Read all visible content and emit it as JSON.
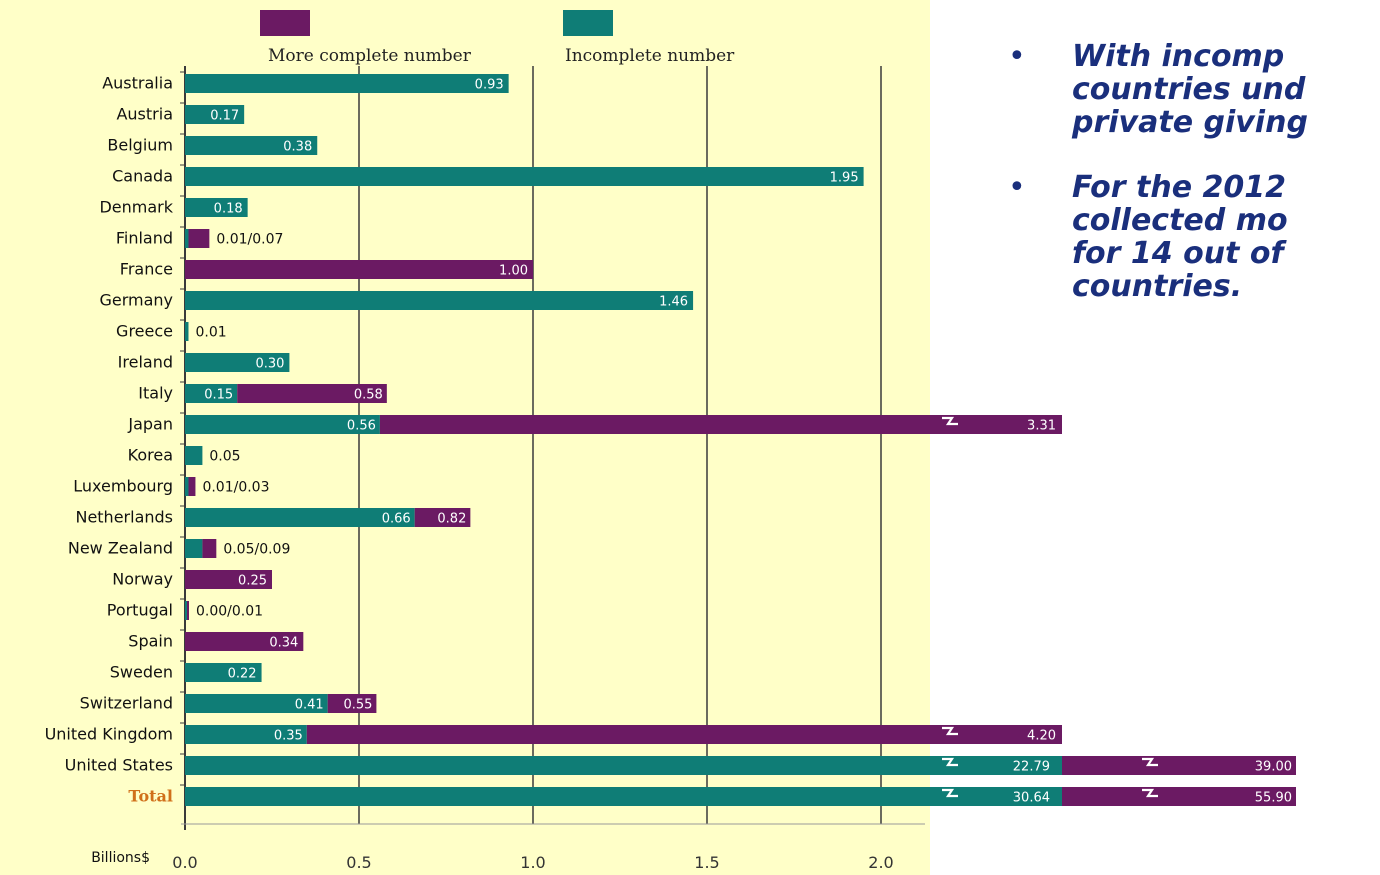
{
  "chart_data": {
    "type": "bar",
    "xlabel": "Billions$",
    "x_ticks": [
      "0.0",
      "0.5",
      "1.0",
      "1.5",
      "2.0"
    ],
    "xlim": [
      0,
      2.1
    ],
    "grid": true,
    "legend": [
      {
        "name": "More complete number",
        "color": "#6b1a63"
      },
      {
        "name": "Incomplete number",
        "color": "#0f7d76"
      }
    ],
    "categories": [
      "Australia",
      "Austria",
      "Belgium",
      "Canada",
      "Denmark",
      "Finland",
      "France",
      "Germany",
      "Greece",
      "Ireland",
      "Italy",
      "Japan",
      "Korea",
      "Luxembourg",
      "Netherlands",
      "New Zealand",
      "Norway",
      "Portugal",
      "Spain",
      "Sweden",
      "Switzerland",
      "United Kingdom",
      "United States",
      "Total"
    ],
    "rows": [
      {
        "incomplete": 0.93,
        "complete": null,
        "label": "0.93"
      },
      {
        "incomplete": 0.17,
        "complete": null,
        "label": "0.17"
      },
      {
        "incomplete": 0.38,
        "complete": null,
        "label": "0.38"
      },
      {
        "incomplete": 1.95,
        "complete": null,
        "label": "1.95"
      },
      {
        "incomplete": 0.18,
        "complete": null,
        "label": "0.18"
      },
      {
        "incomplete": 0.01,
        "complete": 0.07,
        "label": "0.01/0.07"
      },
      {
        "incomplete": null,
        "complete": 1.0,
        "label": "1.00"
      },
      {
        "incomplete": 1.46,
        "complete": null,
        "label": "1.46"
      },
      {
        "incomplete": 0.01,
        "complete": null,
        "label": "0.01"
      },
      {
        "incomplete": 0.3,
        "complete": null,
        "label": "0.30"
      },
      {
        "incomplete": 0.15,
        "complete": 0.58,
        "label_incomplete": "0.15",
        "label_complete": "0.58"
      },
      {
        "incomplete": 0.56,
        "complete": 3.31,
        "label_incomplete": "0.56",
        "label_complete": "3.31",
        "break": true
      },
      {
        "incomplete": 0.05,
        "complete": null,
        "label": "0.05"
      },
      {
        "incomplete": 0.01,
        "complete": 0.03,
        "label": "0.01/0.03"
      },
      {
        "incomplete": 0.66,
        "complete": 0.82,
        "label_incomplete": "0.66",
        "label_complete": "0.82"
      },
      {
        "incomplete": 0.05,
        "complete": 0.09,
        "label": "0.05/0.09"
      },
      {
        "incomplete": null,
        "complete": 0.25,
        "label": "0.25"
      },
      {
        "incomplete": 0.0,
        "complete": 0.01,
        "label": "0.00/0.01"
      },
      {
        "incomplete": null,
        "complete": 0.34,
        "label": "0.34"
      },
      {
        "incomplete": 0.22,
        "complete": null,
        "label": "0.22"
      },
      {
        "incomplete": 0.41,
        "complete": 0.55,
        "label_incomplete": "0.41",
        "label_complete": "0.55"
      },
      {
        "incomplete": 0.35,
        "complete": 4.2,
        "label_incomplete": "0.35",
        "label_complete": "4.20",
        "break": true
      },
      {
        "incomplete": 22.79,
        "complete": 39.0,
        "label_incomplete": "22.79",
        "label_complete": "39.00",
        "break": true,
        "double_break": true
      },
      {
        "incomplete": 30.64,
        "complete": 55.9,
        "label_incomplete": "30.64",
        "label_complete": "55.90",
        "break": true,
        "double_break": true
      }
    ],
    "colors": {
      "complete": "#6b1a63",
      "incomplete": "#0f7d76",
      "total_label": "#d0701a"
    }
  },
  "notes": [
    {
      "lines": [
        "With incomp",
        "countries und",
        "private giving"
      ]
    },
    {
      "lines": [
        "For the 2012",
        "collected mo",
        "for 14 out of",
        "countries."
      ]
    }
  ]
}
